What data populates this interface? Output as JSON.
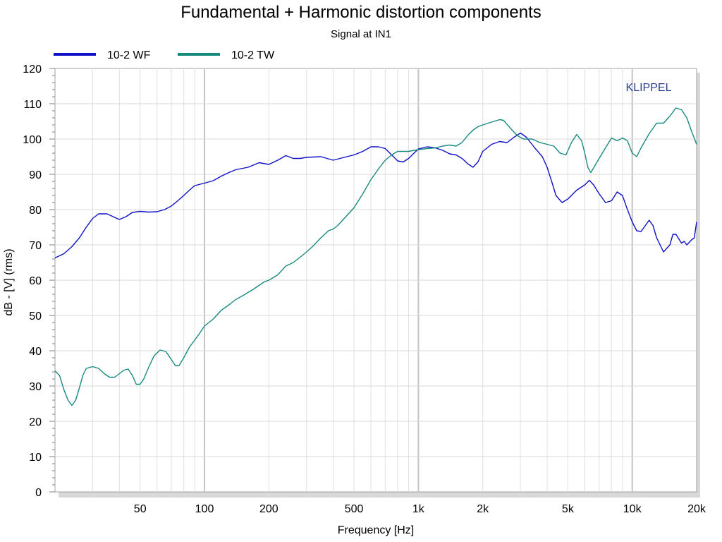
{
  "chart_data": {
    "type": "line",
    "title": "Fundamental + Harmonic distortion components",
    "subtitle": "Signal at IN1",
    "xlabel": "Frequency [Hz]",
    "ylabel": "dB - [V]  (rms)",
    "xscale": "log",
    "xlim": [
      20,
      20000
    ],
    "ylim": [
      0,
      120
    ],
    "grid": true,
    "legend_position": "top-left",
    "watermark": "KLIPPEL",
    "x_tick_labels": [
      {
        "value": 50,
        "label": "50"
      },
      {
        "value": 100,
        "label": "100"
      },
      {
        "value": 200,
        "label": "200"
      },
      {
        "value": 500,
        "label": "500"
      },
      {
        "value": 1000,
        "label": "1k"
      },
      {
        "value": 2000,
        "label": "2k"
      },
      {
        "value": 5000,
        "label": "5k"
      },
      {
        "value": 10000,
        "label": "10k"
      },
      {
        "value": 20000,
        "label": "20k"
      }
    ],
    "y_ticks": [
      0,
      10,
      20,
      30,
      40,
      50,
      60,
      70,
      80,
      90,
      100,
      110,
      120
    ],
    "series": [
      {
        "name": "10-2 WF",
        "color": "#1010c8",
        "points": [
          [
            20,
            66.3
          ],
          [
            22,
            67.5
          ],
          [
            24,
            69.5
          ],
          [
            26,
            72
          ],
          [
            28,
            75
          ],
          [
            30,
            77.5
          ],
          [
            32,
            78.8
          ],
          [
            35,
            78.8
          ],
          [
            38,
            77.8
          ],
          [
            40,
            77.2
          ],
          [
            43,
            78
          ],
          [
            46,
            79.2
          ],
          [
            50,
            79.5
          ],
          [
            55,
            79.3
          ],
          [
            60,
            79.4
          ],
          [
            65,
            80
          ],
          [
            70,
            81
          ],
          [
            75,
            82.5
          ],
          [
            80,
            84
          ],
          [
            85,
            85.5
          ],
          [
            90,
            86.8
          ],
          [
            100,
            87.5
          ],
          [
            110,
            88.2
          ],
          [
            120,
            89.5
          ],
          [
            130,
            90.5
          ],
          [
            140,
            91.3
          ],
          [
            160,
            92
          ],
          [
            180,
            93.3
          ],
          [
            200,
            92.8
          ],
          [
            220,
            94
          ],
          [
            240,
            95.3
          ],
          [
            260,
            94.5
          ],
          [
            280,
            94.5
          ],
          [
            300,
            94.8
          ],
          [
            350,
            95
          ],
          [
            400,
            94
          ],
          [
            450,
            94.8
          ],
          [
            500,
            95.5
          ],
          [
            550,
            96.5
          ],
          [
            600,
            97.8
          ],
          [
            650,
            97.8
          ],
          [
            700,
            97.3
          ],
          [
            750,
            95.5
          ],
          [
            800,
            93.8
          ],
          [
            850,
            93.5
          ],
          [
            900,
            94.5
          ],
          [
            1000,
            97.2
          ],
          [
            1100,
            97.8
          ],
          [
            1200,
            97.5
          ],
          [
            1300,
            96.8
          ],
          [
            1400,
            95.8
          ],
          [
            1500,
            95.5
          ],
          [
            1600,
            94.5
          ],
          [
            1700,
            93
          ],
          [
            1800,
            92
          ],
          [
            1900,
            93.5
          ],
          [
            2000,
            96.5
          ],
          [
            2200,
            98.5
          ],
          [
            2400,
            99.3
          ],
          [
            2600,
            99
          ],
          [
            2800,
            100.5
          ],
          [
            3000,
            101.7
          ],
          [
            3200,
            100.5
          ],
          [
            3500,
            97.5
          ],
          [
            3800,
            95
          ],
          [
            4000,
            92
          ],
          [
            4200,
            88
          ],
          [
            4400,
            84
          ],
          [
            4700,
            82
          ],
          [
            5000,
            83
          ],
          [
            5500,
            85.5
          ],
          [
            6000,
            87
          ],
          [
            6300,
            88.3
          ],
          [
            6600,
            87
          ],
          [
            7000,
            84.5
          ],
          [
            7500,
            82
          ],
          [
            8000,
            82.5
          ],
          [
            8500,
            85
          ],
          [
            9000,
            84
          ],
          [
            9500,
            80
          ],
          [
            10000,
            76.5
          ],
          [
            10500,
            74
          ],
          [
            11000,
            73.8
          ],
          [
            12000,
            77
          ],
          [
            12500,
            75.5
          ],
          [
            13000,
            72
          ],
          [
            13500,
            70
          ],
          [
            14000,
            68
          ],
          [
            15000,
            70
          ],
          [
            15500,
            73
          ],
          [
            16000,
            73
          ],
          [
            17000,
            70.5
          ],
          [
            17500,
            71
          ],
          [
            18000,
            70
          ],
          [
            19000,
            71.5
          ],
          [
            19500,
            72
          ],
          [
            20000,
            76.5
          ]
        ]
      },
      {
        "name": "10-2 TW",
        "color": "#178a80",
        "points": [
          [
            20,
            34.3
          ],
          [
            21,
            33
          ],
          [
            22,
            29
          ],
          [
            23,
            26
          ],
          [
            24,
            24.5
          ],
          [
            25,
            26
          ],
          [
            26,
            29.5
          ],
          [
            27,
            33
          ],
          [
            28,
            35
          ],
          [
            30,
            35.5
          ],
          [
            32,
            35
          ],
          [
            34,
            33.5
          ],
          [
            36,
            32.5
          ],
          [
            38,
            32.5
          ],
          [
            40,
            33.5
          ],
          [
            42,
            34.5
          ],
          [
            44,
            34.8
          ],
          [
            46,
            33
          ],
          [
            48,
            30.5
          ],
          [
            50,
            30.5
          ],
          [
            52,
            32
          ],
          [
            55,
            35.5
          ],
          [
            58,
            38.5
          ],
          [
            62,
            40.2
          ],
          [
            66,
            39.8
          ],
          [
            70,
            37.5
          ],
          [
            73,
            35.8
          ],
          [
            76,
            35.8
          ],
          [
            80,
            38
          ],
          [
            85,
            41
          ],
          [
            90,
            43
          ],
          [
            95,
            45
          ],
          [
            100,
            47
          ],
          [
            110,
            49
          ],
          [
            120,
            51.5
          ],
          [
            130,
            53
          ],
          [
            140,
            54.5
          ],
          [
            150,
            55.5
          ],
          [
            170,
            57.5
          ],
          [
            190,
            59.5
          ],
          [
            200,
            60
          ],
          [
            220,
            61.5
          ],
          [
            240,
            64
          ],
          [
            260,
            65
          ],
          [
            280,
            66.5
          ],
          [
            300,
            68
          ],
          [
            320,
            69.5
          ],
          [
            350,
            72
          ],
          [
            380,
            74
          ],
          [
            400,
            74.5
          ],
          [
            420,
            75.5
          ],
          [
            450,
            77.5
          ],
          [
            500,
            80.5
          ],
          [
            550,
            84.5
          ],
          [
            600,
            88.5
          ],
          [
            650,
            91.5
          ],
          [
            700,
            94
          ],
          [
            750,
            95.5
          ],
          [
            800,
            96.5
          ],
          [
            900,
            96.5
          ],
          [
            1000,
            97
          ],
          [
            1100,
            97.3
          ],
          [
            1200,
            97.5
          ],
          [
            1300,
            98
          ],
          [
            1400,
            98.3
          ],
          [
            1500,
            98
          ],
          [
            1600,
            99
          ],
          [
            1700,
            101
          ],
          [
            1800,
            102.5
          ],
          [
            1900,
            103.5
          ],
          [
            2000,
            104
          ],
          [
            2200,
            104.8
          ],
          [
            2400,
            105.5
          ],
          [
            2500,
            105.3
          ],
          [
            2700,
            103
          ],
          [
            2900,
            101
          ],
          [
            3100,
            100
          ],
          [
            3400,
            100
          ],
          [
            3700,
            99
          ],
          [
            4000,
            98.5
          ],
          [
            4300,
            98
          ],
          [
            4600,
            96
          ],
          [
            4900,
            95.5
          ],
          [
            5200,
            99
          ],
          [
            5500,
            101.3
          ],
          [
            5800,
            99.5
          ],
          [
            6000,
            96
          ],
          [
            6200,
            92
          ],
          [
            6400,
            90.5
          ],
          [
            6700,
            92.5
          ],
          [
            7000,
            94.5
          ],
          [
            7500,
            97.5
          ],
          [
            8000,
            100.3
          ],
          [
            8500,
            99.5
          ],
          [
            9000,
            100.3
          ],
          [
            9500,
            99.5
          ],
          [
            10000,
            96
          ],
          [
            10500,
            95
          ],
          [
            11000,
            97.5
          ],
          [
            12000,
            101.5
          ],
          [
            13000,
            104.5
          ],
          [
            14000,
            104.5
          ],
          [
            15000,
            106.5
          ],
          [
            16000,
            108.8
          ],
          [
            17000,
            108.3
          ],
          [
            18000,
            106
          ],
          [
            19000,
            102
          ],
          [
            20000,
            98.5
          ]
        ]
      }
    ]
  }
}
